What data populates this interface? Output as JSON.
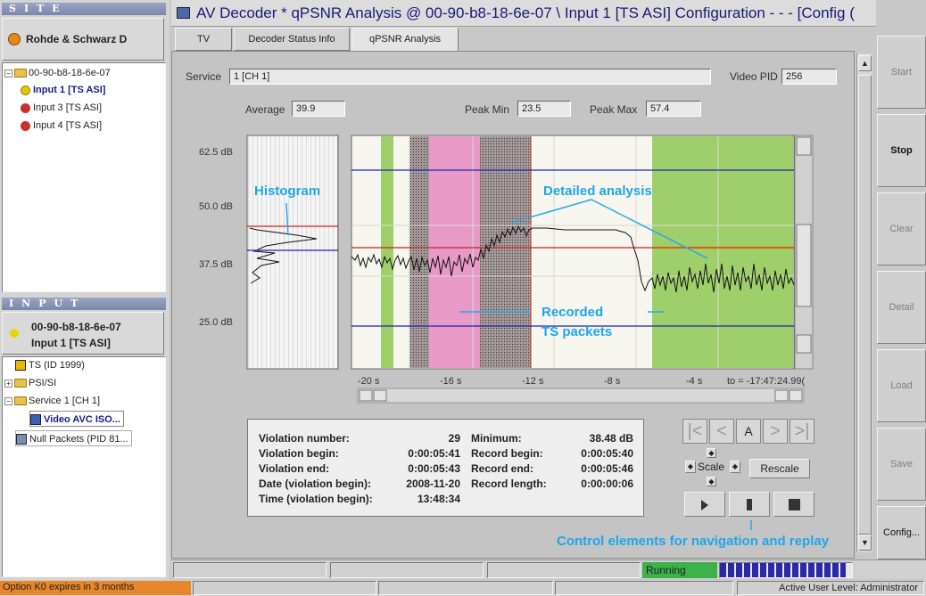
{
  "site_panel": {
    "header": "SITE",
    "selected_site": "Rohde & Schwarz D",
    "tree": [
      {
        "label": "00-90-b8-18-6e-07"
      },
      {
        "label": "Input 1 [TS ASI]"
      },
      {
        "label": "Input 3 [TS ASI]"
      },
      {
        "label": "Input 4 [TS ASI]"
      }
    ]
  },
  "input_panel": {
    "header": "INPUT",
    "selected_line1": "00-90-b8-18-6e-07",
    "selected_line2": "Input 1 [TS ASI]",
    "tree": [
      {
        "label": "TS (ID  1999)"
      },
      {
        "label": "PSI/SI"
      },
      {
        "label": "Service  1 [CH 1]"
      },
      {
        "label": "Video AVC ISO..."
      },
      {
        "label": "Null Packets (PID 81..."
      }
    ]
  },
  "window": {
    "title": "AV Decoder * qPSNR Analysis @ 00-90-b8-18-6e-07 \\ Input 1 [TS ASI] Configuration - - - [Config ("
  },
  "tabs": [
    {
      "label": "TV"
    },
    {
      "label": "Decoder Status Info"
    },
    {
      "label": "qPSNR Analysis"
    }
  ],
  "fields": {
    "service_label": "Service",
    "service_value": "1 [CH 1]",
    "video_pid_label": "Video PID",
    "video_pid_value": "256",
    "average_label": "Average",
    "average_value": "39.9",
    "peak_min_label": "Peak Min",
    "peak_min_value": "23.5",
    "peak_max_label": "Peak Max",
    "peak_max_value": "57.4"
  },
  "chart": {
    "y_ticks": [
      "62.5 dB",
      "50.0 dB",
      "37.5 dB",
      "25.0 dB"
    ],
    "x_ticks": [
      "-20 s",
      "-16 s",
      "-12 s",
      "-8 s",
      "-4 s",
      "to = -17:47:24.99("
    ]
  },
  "annotations": {
    "histogram": "Histogram",
    "detailed": "Detailed analysis",
    "recorded_1": "Recorded",
    "recorded_2": "TS packets",
    "controls": "Control elements for navigation and replay"
  },
  "violation": {
    "number_label": "Violation number:",
    "number_value": "29",
    "begin_label": "Violation begin:",
    "begin_value": "0:00:05:41",
    "end_label": "Violation end:",
    "end_value": "0:00:05:43",
    "date_label": "Date (violation begin):",
    "date_value": "2008-11-20",
    "time_label": "Time (violation begin):",
    "time_value": "13:48:34",
    "minimum_label": "Minimum:",
    "minimum_value": "38.48 dB",
    "record_begin_label": "Record begin:",
    "record_begin_value": "0:00:05:40",
    "record_end_label": "Record end:",
    "record_end_value": "0:00:05:46",
    "record_length_label": "Record length:",
    "record_length_value": "0:00:00:06"
  },
  "controls": {
    "nav_first": "|<",
    "nav_prev": "<",
    "nav_auto": "A",
    "nav_next": ">",
    "nav_last": ">|",
    "scale_label": "Scale",
    "rescale_label": "Rescale"
  },
  "side_buttons": [
    {
      "label": "Start"
    },
    {
      "label": "Stop"
    },
    {
      "label": "Clear"
    },
    {
      "label": "Detail"
    },
    {
      "label": "Load"
    },
    {
      "label": "Save"
    },
    {
      "label": "Config..."
    }
  ],
  "status": {
    "running": "Running",
    "progress_fraction": 0.95,
    "option_notice": "Option K0 expires in 3 months",
    "user_level": "Active User Level: Administrator"
  },
  "colors": {
    "green_band": "#9fcf6a",
    "pink_band": "#e79ac8",
    "grey_band": "#a89a9a",
    "red_line": "#d02020",
    "blue_line": "#2020b0",
    "callout": "#1fa6ea"
  }
}
